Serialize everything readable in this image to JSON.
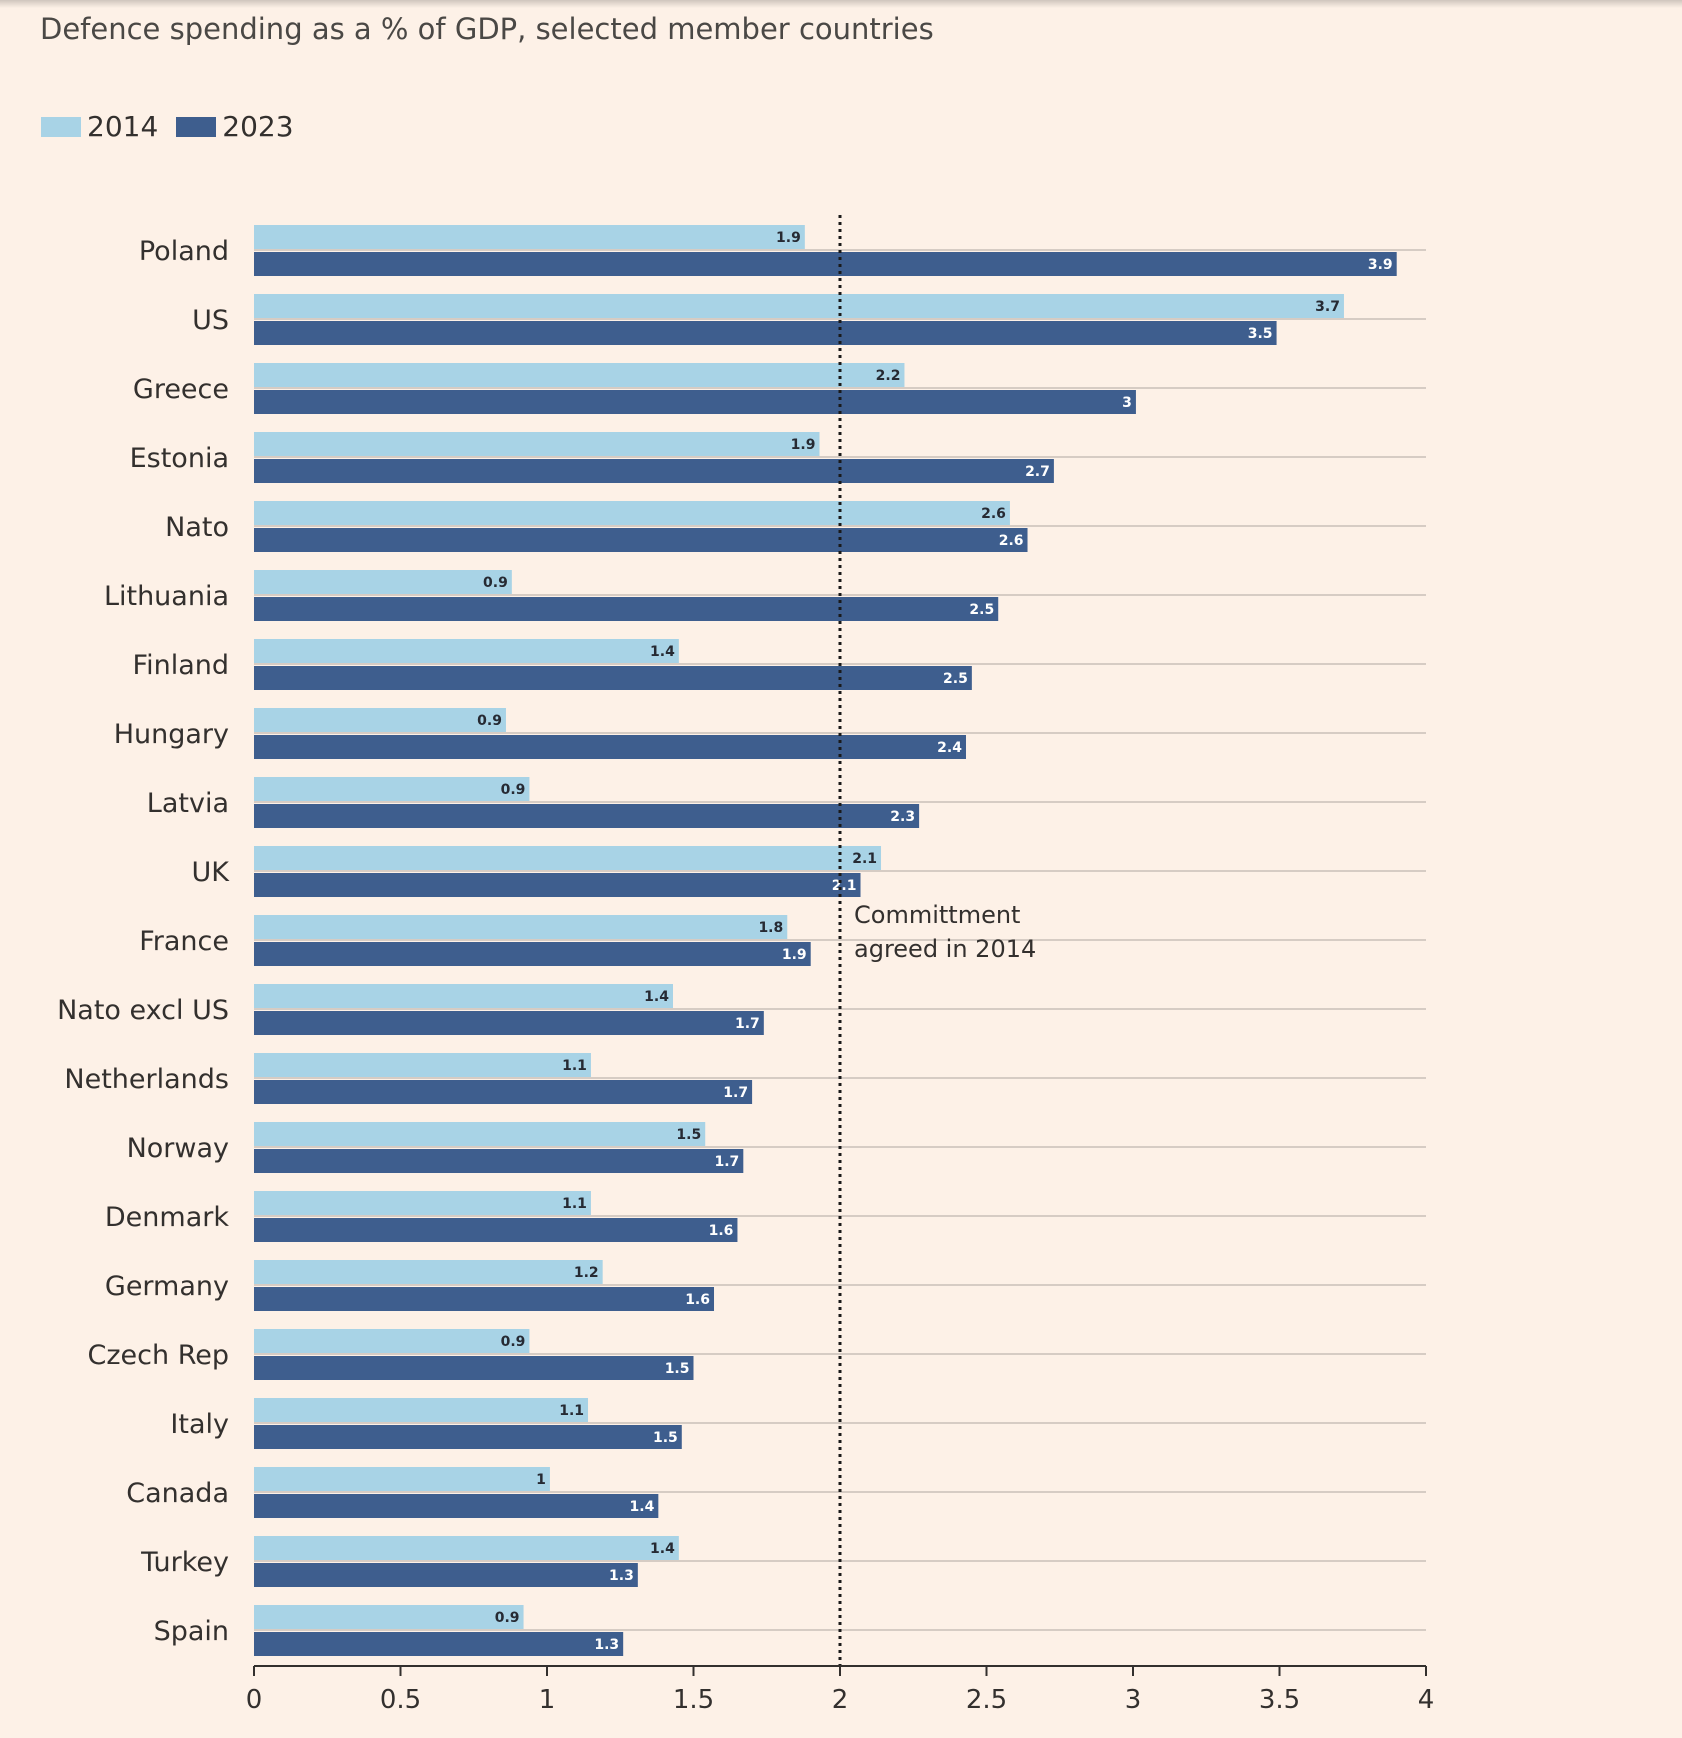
{
  "chart_data": {
    "type": "bar",
    "orientation": "horizontal",
    "title": "Defence spending as a % of GDP, selected member countries",
    "categories": [
      "Poland",
      "US",
      "Greece",
      "Estonia",
      "Nato",
      "Lithuania",
      "Finland",
      "Hungary",
      "Latvia",
      "UK",
      "France",
      "Nato excl US",
      "Netherlands",
      "Norway",
      "Denmark",
      "Germany",
      "Czech Rep",
      "Italy",
      "Canada",
      "Turkey",
      "Spain"
    ],
    "series": [
      {
        "name": "2014",
        "color": "#a8d3e6",
        "label_color": "#262a33",
        "values": [
          1.88,
          3.72,
          2.22,
          1.93,
          2.58,
          0.88,
          1.45,
          0.86,
          0.94,
          2.14,
          1.82,
          1.43,
          1.15,
          1.54,
          1.15,
          1.19,
          0.94,
          1.14,
          1.01,
          1.45,
          0.92
        ],
        "labels": [
          "1.9",
          "3.7",
          "2.2",
          "1.9",
          "2.6",
          "0.9",
          "1.4",
          "0.9",
          "0.9",
          "2.1",
          "1.8",
          "1.4",
          "1.1",
          "1.5",
          "1.1",
          "1.2",
          "0.9",
          "1.1",
          "1",
          "1.4",
          "0.9"
        ]
      },
      {
        "name": "2023",
        "color": "#3e5e8e",
        "label_color": "#ffffff",
        "values": [
          3.9,
          3.49,
          3.01,
          2.73,
          2.64,
          2.54,
          2.45,
          2.43,
          2.27,
          2.07,
          1.9,
          1.74,
          1.7,
          1.67,
          1.65,
          1.57,
          1.5,
          1.46,
          1.38,
          1.31,
          1.26
        ],
        "labels": [
          "3.9",
          "3.5",
          "3",
          "2.7",
          "2.6",
          "2.5",
          "2.5",
          "2.4",
          "2.3",
          "2.1",
          "1.9",
          "1.7",
          "1.7",
          "1.7",
          "1.6",
          "1.6",
          "1.5",
          "1.5",
          "1.4",
          "1.3",
          "1.3"
        ]
      }
    ],
    "x_ticks": [
      0,
      0.5,
      1,
      1.5,
      2,
      2.5,
      3,
      3.5,
      4
    ],
    "x_tick_labels": [
      "0",
      "0.5",
      "1",
      "1.5",
      "2",
      "2.5",
      "3",
      "3.5",
      "4"
    ],
    "xlim": [
      0,
      4
    ],
    "xlabel": "",
    "ylabel": "",
    "legend_position": "top-left",
    "grid": "horizontal",
    "reference_line": {
      "value": 2,
      "style": "dotted",
      "annotation": [
        "Committment",
        "agreed in 2014"
      ]
    }
  }
}
